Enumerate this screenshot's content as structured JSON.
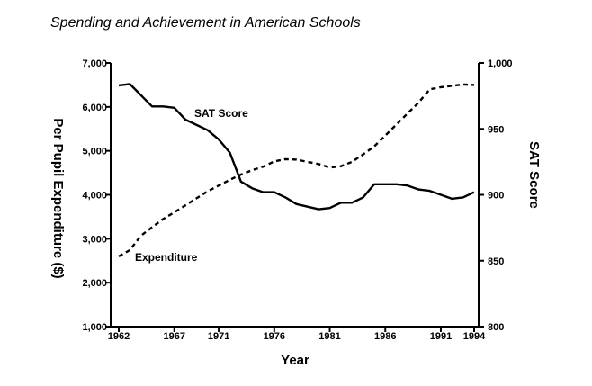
{
  "chart_data": {
    "type": "line",
    "title": "Spending and Achievement in American Schools",
    "xlabel": "Year",
    "ylabel_left": "Per Pupil Expenditure ($)",
    "ylabel_right": "SAT Score",
    "xlim": [
      1962,
      1994
    ],
    "x_ticks": [
      1962,
      1967,
      1971,
      1976,
      1981,
      1986,
      1991,
      1994
    ],
    "ylim_left": [
      1000,
      7000
    ],
    "y_ticks_left": [
      1000,
      2000,
      3000,
      4000,
      5000,
      6000,
      7000
    ],
    "y_tick_labels_left": [
      "1,000",
      "2,000",
      "3,000",
      "4,000",
      "5,000",
      "6,000",
      "7,000"
    ],
    "ylim_right": [
      800,
      1000
    ],
    "y_ticks_right": [
      800,
      850,
      900,
      950,
      1000
    ],
    "y_tick_labels_right": [
      "800",
      "850",
      "900",
      "950",
      "1,000"
    ],
    "grid": false,
    "series": [
      {
        "name": "SAT Score",
        "axis": "right",
        "style": "solid",
        "color": "#000000",
        "x": [
          1962,
          1963,
          1965,
          1966,
          1967,
          1968,
          1970,
          1971,
          1972,
          1973,
          1974,
          1975,
          1976,
          1977,
          1978,
          1979,
          1980,
          1981,
          1982,
          1983,
          1984,
          1985,
          1986,
          1987,
          1988,
          1989,
          1990,
          1991,
          1992,
          1993,
          1994
        ],
        "values": [
          983,
          984,
          967,
          967,
          966,
          957,
          949,
          942,
          932,
          910,
          905,
          902,
          902,
          898,
          893,
          891,
          889,
          890,
          894,
          894,
          898,
          908,
          908,
          908,
          907,
          904,
          903,
          900,
          897,
          898,
          902
        ]
      },
      {
        "name": "Expenditure",
        "axis": "left",
        "style": "dashed",
        "color": "#000000",
        "x": [
          1962,
          1963,
          1964,
          1965,
          1966,
          1967,
          1968,
          1969,
          1970,
          1971,
          1972,
          1973,
          1974,
          1975,
          1976,
          1977,
          1978,
          1979,
          1980,
          1981,
          1982,
          1983,
          1984,
          1985,
          1986,
          1987,
          1988,
          1989,
          1990,
          1991,
          1992,
          1993,
          1994
        ],
        "values": [
          2600,
          2740,
          3070,
          3260,
          3450,
          3600,
          3760,
          3920,
          4080,
          4210,
          4340,
          4460,
          4560,
          4640,
          4760,
          4810,
          4800,
          4750,
          4700,
          4620,
          4650,
          4750,
          4920,
          5100,
          5350,
          5600,
          5850,
          6100,
          6400,
          6450,
          6480,
          6510,
          6500
        ]
      }
    ]
  }
}
